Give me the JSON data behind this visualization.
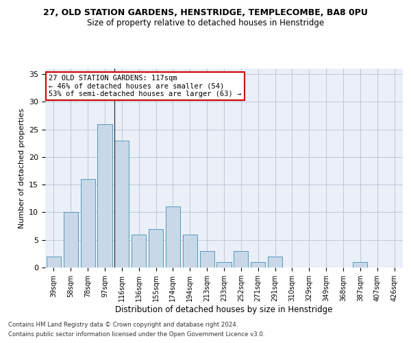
{
  "title1": "27, OLD STATION GARDENS, HENSTRIDGE, TEMPLECOMBE, BA8 0PU",
  "title2": "Size of property relative to detached houses in Henstridge",
  "xlabel": "Distribution of detached houses by size in Henstridge",
  "ylabel": "Number of detached properties",
  "categories": [
    "39sqm",
    "58sqm",
    "78sqm",
    "97sqm",
    "116sqm",
    "136sqm",
    "155sqm",
    "174sqm",
    "194sqm",
    "213sqm",
    "233sqm",
    "252sqm",
    "271sqm",
    "291sqm",
    "310sqm",
    "329sqm",
    "349sqm",
    "368sqm",
    "387sqm",
    "407sqm",
    "426sqm"
  ],
  "values": [
    2,
    10,
    16,
    26,
    23,
    6,
    7,
    11,
    6,
    3,
    1,
    3,
    1,
    2,
    0,
    0,
    0,
    0,
    1,
    0,
    0
  ],
  "bar_color": "#c8d8e8",
  "bar_edge_color": "#5599bb",
  "highlight_index": 4,
  "highlight_line_color": "#333333",
  "annotation_text": "27 OLD STATION GARDENS: 117sqm\n← 46% of detached houses are smaller (54)\n53% of semi-detached houses are larger (63) →",
  "annotation_box_color": "#ffffff",
  "annotation_box_edge": "#cc0000",
  "ylim": [
    0,
    36
  ],
  "yticks": [
    0,
    5,
    10,
    15,
    20,
    25,
    30,
    35
  ],
  "background_color": "#eaeff8",
  "footer1": "Contains HM Land Registry data © Crown copyright and database right 2024.",
  "footer2": "Contains public sector information licensed under the Open Government Licence v3.0."
}
